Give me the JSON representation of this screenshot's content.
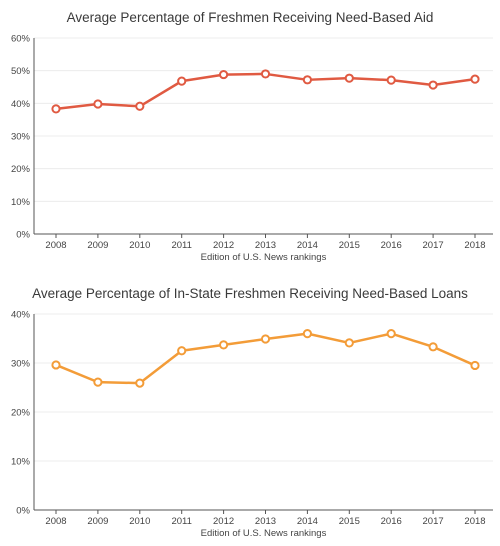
{
  "chart_data": [
    {
      "type": "line",
      "title": "Average Percentage of Freshmen Receiving Need-Based Aid",
      "xlabel": "Edition of U.S. News rankings",
      "ylabel": "",
      "categories": [
        "2008",
        "2009",
        "2010",
        "2011",
        "2012",
        "2013",
        "2014",
        "2015",
        "2016",
        "2017",
        "2018"
      ],
      "series": [
        {
          "values": [
            38.3,
            39.8,
            39.1,
            46.8,
            48.8,
            49.0,
            47.2,
            47.7,
            47.1,
            45.6,
            47.4
          ],
          "color": "#e05a42"
        }
      ],
      "ylim": [
        0,
        60
      ],
      "yticks": [
        "0%",
        "10%",
        "20%",
        "30%",
        "40%",
        "50%",
        "60%"
      ],
      "ytick_values": [
        0,
        10,
        20,
        30,
        40,
        50,
        60
      ],
      "grid": true
    },
    {
      "type": "line",
      "title": "Average Percentage of In-State Freshmen Receiving Need-Based Loans",
      "xlabel": "Edition of U.S. News rankings",
      "ylabel": "",
      "categories": [
        "2008",
        "2009",
        "2010",
        "2011",
        "2012",
        "2013",
        "2014",
        "2015",
        "2016",
        "2017",
        "2018"
      ],
      "series": [
        {
          "values": [
            29.6,
            26.1,
            25.9,
            32.5,
            33.7,
            34.9,
            36.0,
            34.1,
            36.0,
            33.3,
            29.5
          ],
          "color": "#f39c38"
        }
      ],
      "ylim": [
        0,
        40
      ],
      "yticks": [
        "0%",
        "10%",
        "20%",
        "30%",
        "40%"
      ],
      "ytick_values": [
        0,
        10,
        20,
        30,
        40
      ],
      "grid": true
    }
  ]
}
